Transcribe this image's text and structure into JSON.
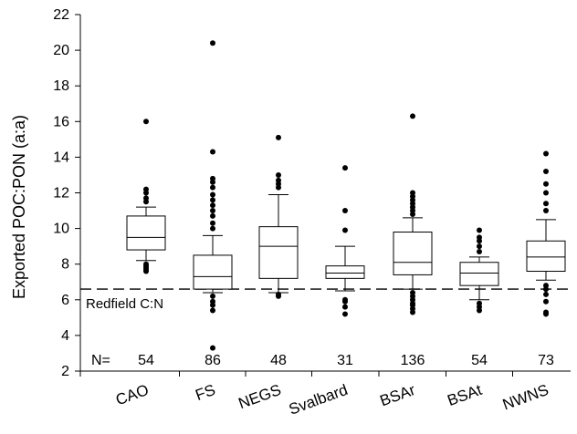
{
  "chart_data": {
    "type": "box",
    "title": "",
    "xlabel": "",
    "ylabel": "Exported POC:PON (a:a)",
    "ylim": [
      2,
      22
    ],
    "yticks": [
      2,
      4,
      6,
      8,
      10,
      12,
      14,
      16,
      18,
      20,
      22
    ],
    "grid": false,
    "reference_line": {
      "value": 6.6,
      "label": "Redfield C:N",
      "style": "dashed"
    },
    "n_prefix": "N=",
    "categories": [
      "CAO",
      "FS",
      "NEGS",
      "Svalbard",
      "BSAr",
      "BSAt",
      "NWNS"
    ],
    "n_values": [
      54,
      86,
      48,
      31,
      136,
      54,
      73
    ],
    "boxes": [
      {
        "category": "CAO",
        "whisker_low": 8.2,
        "q1": 8.8,
        "median": 9.5,
        "q3": 10.7,
        "whisker_high": 11.2,
        "outliers_low": [
          7.6,
          7.7,
          7.8,
          7.9,
          8.0
        ],
        "outliers_high": [
          11.5,
          11.7,
          12.0,
          12.2,
          16.0
        ]
      },
      {
        "category": "FS",
        "whisker_low": 6.4,
        "q1": 6.6,
        "median": 7.3,
        "q3": 8.5,
        "whisker_high": 9.6,
        "outliers_low": [
          3.3,
          5.4,
          5.7,
          5.9,
          6.2
        ],
        "outliers_high": [
          10.0,
          10.3,
          10.7,
          11.0,
          11.3,
          11.6,
          11.9,
          12.3,
          12.6,
          12.8,
          14.3,
          20.4
        ]
      },
      {
        "category": "NEGS",
        "whisker_low": 6.4,
        "q1": 7.2,
        "median": 9.0,
        "q3": 10.1,
        "whisker_high": 11.9,
        "outliers_low": [
          6.2,
          6.3
        ],
        "outliers_high": [
          12.3,
          12.5,
          12.7,
          13.0,
          15.1
        ]
      },
      {
        "category": "Svalbard",
        "whisker_low": 6.5,
        "q1": 7.2,
        "median": 7.5,
        "q3": 7.9,
        "whisker_high": 9.0,
        "outliers_low": [
          5.2,
          5.6,
          5.9,
          6.0
        ],
        "outliers_high": [
          9.9,
          11.0,
          13.4
        ]
      },
      {
        "category": "BSAr",
        "whisker_low": 6.6,
        "q1": 7.4,
        "median": 8.1,
        "q3": 9.8,
        "whisker_high": 10.6,
        "outliers_low": [
          5.3,
          5.5,
          5.7,
          5.8,
          6.0,
          6.2,
          6.4
        ],
        "outliers_high": [
          10.8,
          11.0,
          11.2,
          11.4,
          11.6,
          11.8,
          12.0,
          16.3
        ]
      },
      {
        "category": "BSAt",
        "whisker_low": 6.0,
        "q1": 6.8,
        "median": 7.5,
        "q3": 8.1,
        "whisker_high": 8.4,
        "outliers_low": [
          5.4,
          5.6,
          5.8
        ],
        "outliers_high": [
          8.7,
          9.0,
          9.3,
          9.5,
          9.9
        ]
      },
      {
        "category": "NWNS",
        "whisker_low": 7.1,
        "q1": 7.6,
        "median": 8.4,
        "q3": 9.3,
        "whisker_high": 10.5,
        "outliers_low": [
          5.2,
          5.3,
          5.9,
          6.3,
          6.6,
          6.8
        ],
        "outliers_high": [
          11.0,
          11.4,
          12.0,
          12.5,
          13.2,
          14.2
        ]
      }
    ]
  }
}
